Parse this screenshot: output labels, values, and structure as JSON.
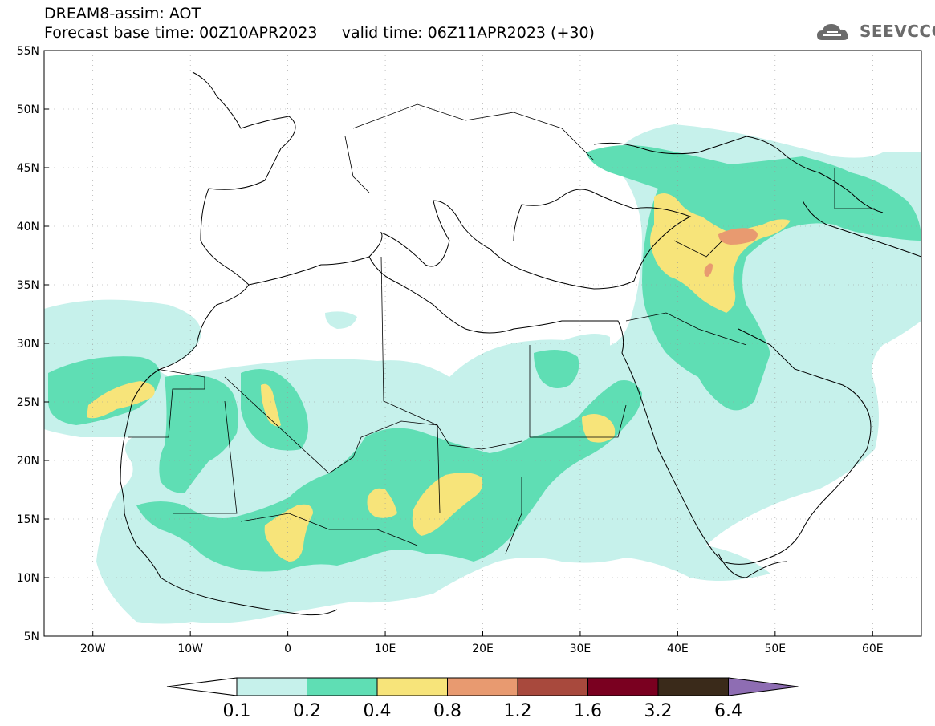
{
  "header": {
    "title_line1": "DREAM8-assim: AOT",
    "title_line2": "Forecast base time: 00Z10APR2023     valid time: 06Z11APR2023 (+30)",
    "logo_text": "SEEVCCC",
    "logo_icon": "cloud-icon"
  },
  "map": {
    "lon_range": [
      -25,
      65
    ],
    "lat_range": [
      5,
      55
    ],
    "grid": true,
    "lat_ticks": [
      "55N",
      "50N",
      "45N",
      "40N",
      "35N",
      "30N",
      "25N",
      "20N",
      "15N",
      "10N",
      "5N"
    ],
    "lon_ticks": [
      "20W",
      "10W",
      "0",
      "10E",
      "20E",
      "30E",
      "40E",
      "50E",
      "60E"
    ],
    "field": "AOT"
  },
  "colorbar": {
    "labels": [
      "0.1",
      "0.2",
      "0.4",
      "0.8",
      "1.2",
      "1.6",
      "3.2",
      "6.4"
    ],
    "colors": [
      "#ffffff",
      "#c6f1eb",
      "#5fdeb4",
      "#f7e47a",
      "#e89a70",
      "#a8493d",
      "#7a0020",
      "#3a2a1a",
      "#8e6db3"
    ]
  }
}
